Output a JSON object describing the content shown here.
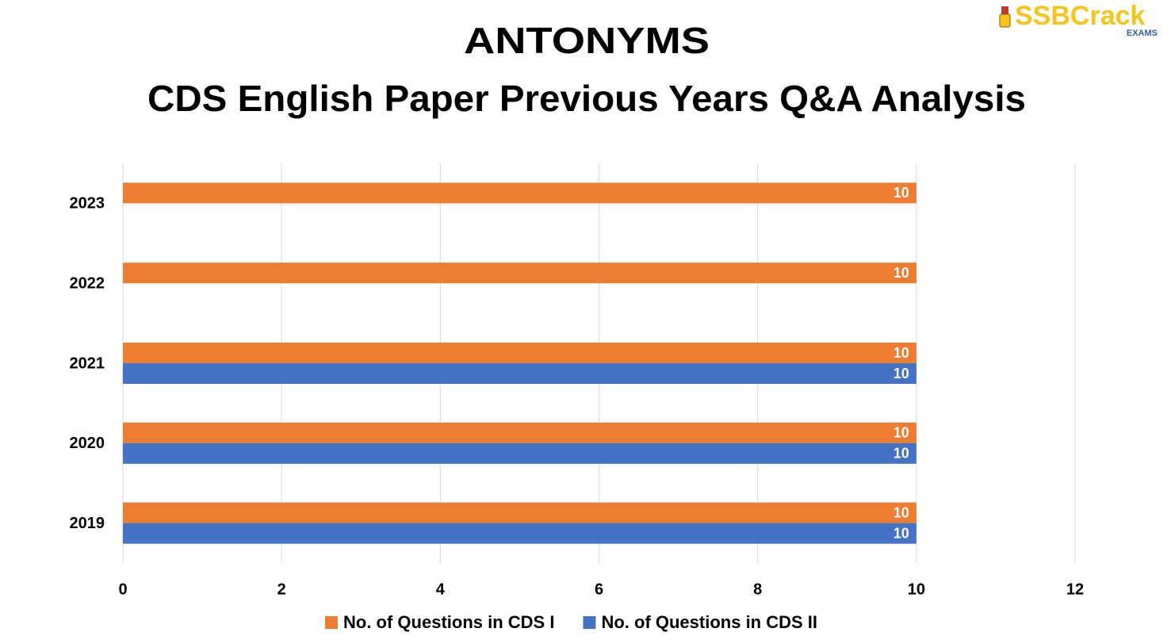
{
  "logo": {
    "name": "SSBCrack",
    "sub": "EXAMS"
  },
  "chart_data": {
    "type": "hbar",
    "title": "ANTONYMS",
    "subtitle": "CDS English Paper Previous Years Q&A Analysis",
    "categories": [
      "2023",
      "2022",
      "2021",
      "2020",
      "2019"
    ],
    "series": [
      {
        "name": "No. of Questions in CDS I",
        "color": "#ed7d31",
        "values": [
          10,
          10,
          10,
          10,
          10
        ]
      },
      {
        "name": "No. of Questions in CDS II",
        "color": "#4472c4",
        "values": [
          null,
          null,
          10,
          10,
          10
        ]
      }
    ],
    "xlim": [
      0,
      12
    ],
    "xticks": [
      0,
      2,
      4,
      6,
      8,
      10,
      12
    ],
    "grid": true,
    "legend": "bottom"
  }
}
